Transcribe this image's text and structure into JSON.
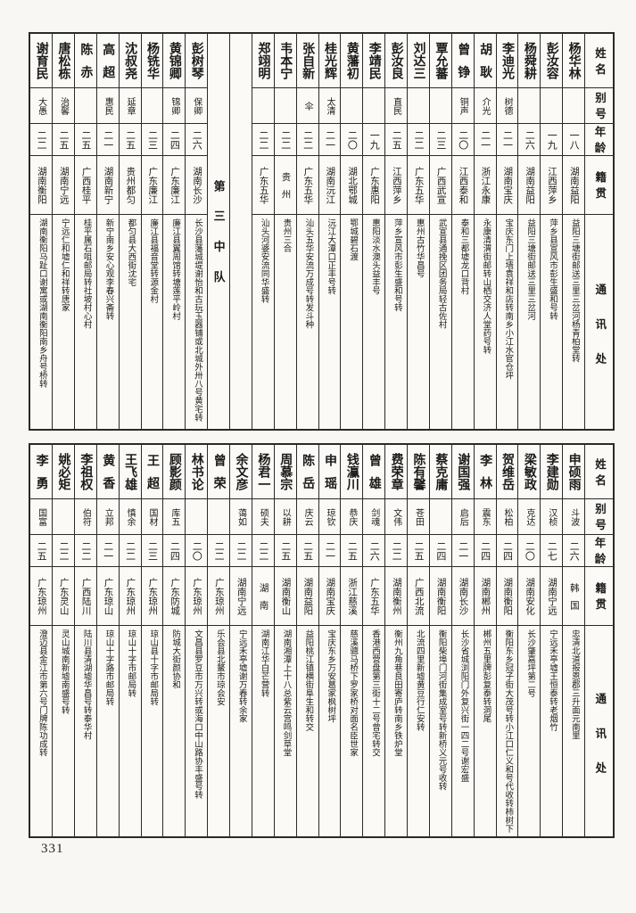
{
  "page_number": "331",
  "table_headers": {
    "name": "姓名",
    "alias": "别号",
    "age": "年龄",
    "native": "籍贯",
    "address": "通讯处"
  },
  "tables": [
    {
      "columns": [
        {
          "name": "杨华林",
          "alias": "",
          "age": "一八",
          "native": "湖南益阳",
          "address": "益阳三塘街邮送三里三岔河杨青柏堂转"
        },
        {
          "name": "彭汝容",
          "alias": "",
          "age": "一九",
          "native": "江西萍乡",
          "address": "萍乡县宣风市彭生盛和号转"
        },
        {
          "name": "杨舜耕",
          "alias": "",
          "age": "二六",
          "native": "湖南益阳",
          "address": "益阳三塘街邮送三里三岔河"
        },
        {
          "name": "李迪光",
          "alias": "树德",
          "age": "二一",
          "native": "湖南宝庆",
          "address": "宝庆东门上墙袁祥和店转南乡小江水官仓坪"
        },
        {
          "name": "胡耿",
          "alias": "介光",
          "age": "二一",
          "native": "浙江永康",
          "address": "永康清渭街邮转山栖交济人堂药号转"
        },
        {
          "name": "曾铮",
          "alias": "铜声",
          "age": "二〇",
          "native": "江西泰和",
          "address": "泰和三都墟龙口背村"
        },
        {
          "name": "覃允蕃",
          "alias": "",
          "age": "二三",
          "native": "广西武宣",
          "address": "武宣县通挽区团务局轻古佐村"
        },
        {
          "name": "刘达三",
          "alias": "",
          "age": "二二",
          "native": "广东五华",
          "address": "惠州古竹华昌号"
        },
        {
          "name": "彭汝良",
          "alias": "直民",
          "age": "二五",
          "native": "江西萍乡",
          "address": "萍乡宣风市彭生盛和号转"
        },
        {
          "name": "李靖民",
          "alias": "",
          "age": "一九",
          "native": "广东惠阳",
          "address": "惠阳淡水澳头益丰号"
        },
        {
          "name": "黄藩初",
          "alias": "",
          "age": "二〇",
          "native": "湖北鄂城",
          "address": "鄂城碧石渡"
        },
        {
          "name": "桂光辉",
          "alias": "太清",
          "age": "二一",
          "native": "湖南沅江",
          "address": "沅江大潭口正丰号转"
        },
        {
          "name": "张自新",
          "alias": "伞",
          "age": "二二",
          "native": "广东五华",
          "address": "汕头五华安流万成号转发斗种"
        },
        {
          "name": "韦本宁",
          "alias": "",
          "age": "二二",
          "native": "贵州",
          "address": "贵州三合"
        },
        {
          "name": "郑翊明",
          "alias": "",
          "age": "二二",
          "native": "广东五华",
          "address": "汕头河婆安流同华盛转"
        },
        {
          "spacer": true
        },
        {
          "divider": "第三中队"
        },
        {
          "name": "彭树琴",
          "alias": "保卿",
          "age": "二六",
          "native": "湖南长沙",
          "address": "长沙县藩城堤谢怡和古玩玉器铺或北城外卅八号黄宅转"
        },
        {
          "name": "黄锦卿",
          "alias": "锦卿",
          "age": "二四",
          "native": "广东廉江",
          "address": "廉江县翼周馆转塘莲平岭村"
        },
        {
          "name": "杨铣华",
          "alias": "",
          "age": "二三",
          "native": "广东廉江",
          "address": "廉江县福音堂转源金村"
        },
        {
          "name": "沈叔尧",
          "alias": "延章",
          "age": "二五",
          "native": "贵州都匀",
          "address": "都匀县大西街沈宅"
        },
        {
          "name": "高超",
          "alias": "惠民",
          "age": "二一",
          "native": "湖南新宁",
          "address": "新宁南乡安心观李春兴斋转"
        },
        {
          "name": "陈赤",
          "alias": "",
          "age": "二五",
          "native": "广西桂平",
          "address": "桂平属石咀邮局转社坡村心村"
        },
        {
          "name": "唐松栋",
          "alias": "治馨",
          "age": "二五",
          "native": "湖南宁远",
          "address": "宁远仁和墟仁和祥转唐家"
        },
        {
          "name": "谢育民",
          "alias": "大愚",
          "age": "二二",
          "native": "湖南衡阳",
          "address": "湖南衡阳马趾口谢寓或湖南衡阳南乡舟号桥转"
        }
      ]
    },
    {
      "columns": [
        {
          "name": "申硕雨",
          "alias": "斗波",
          "age": "二六",
          "native": "韩国",
          "address": "忠清北道报恩郡三升面元南里"
        },
        {
          "name": "李建勋",
          "alias": "汉桢",
          "age": "二七",
          "native": "湖南宁远",
          "address": "宁远禾亭墟王恒泰转老烟竹"
        },
        {
          "name": "梁敏政",
          "alias": "克达",
          "age": "二〇",
          "native": "湖南安化",
          "address": "长沙肇嘉坪第二号"
        },
        {
          "name": "贺维岳",
          "alias": "松柏",
          "age": "二四",
          "native": "湖南衡阳",
          "address": "衡阳东乡冠子街大茂号转小江口仁义和号代收转柿树下"
        },
        {
          "name": "李林",
          "alias": "震东",
          "age": "二四",
          "native": "湖南郴州",
          "address": "郴州五里牌彭复泰转洞尾"
        },
        {
          "name": "谢国强",
          "alias": "启后",
          "age": "二一",
          "native": "湖南长沙",
          "address": "长沙省城浏阳门外复兴街一四二号谢宏盛"
        },
        {
          "name": "蔡克庸",
          "alias": "",
          "age": "二四",
          "native": "湖南衡阳",
          "address": "衡阳柴埠门河街集成室号转新桥义元号收转"
        },
        {
          "name": "陈有馨",
          "alias": "苍田",
          "age": "二五",
          "native": "广西北流",
          "address": "北流四里新墟黄豆行仁安转"
        },
        {
          "name": "费荣章",
          "alias": "文伟",
          "age": "二二",
          "native": "湖南衡州",
          "address": "衡州九角巷良田寄庐转南乡铁炉堂"
        },
        {
          "name": "曾雄",
          "alias": "剑魂",
          "age": "二六",
          "native": "广东五华",
          "address": "香港西营盘第三街十二号曾宅转交"
        },
        {
          "name": "钱灜川",
          "alias": "恭庆",
          "age": "二五",
          "native": "浙江慈溪",
          "address": "慈溪骢马桥下罗家桥对面名臣世家"
        },
        {
          "name": "申瑶",
          "alias": "琼钦",
          "age": "二一",
          "native": "湖南宝庆",
          "address": "宝庆东乡万安葛家枫树坪"
        },
        {
          "name": "陈岳",
          "alias": "庆云",
          "age": "二五",
          "native": "湖南益阳",
          "address": "益阳桃江镇横街阜生和转交"
        },
        {
          "name": "周慕宗",
          "alias": "以耕",
          "age": "二五",
          "native": "湖南衡山",
          "address": "湖南湘潭上十八总紫云宫鸣剑草堂"
        },
        {
          "name": "杨君一",
          "alias": "硕夫",
          "age": "二二",
          "native": "湖南",
          "address": "湖南江华白芒营转"
        },
        {
          "name": "余文彦",
          "alias": "蔼如",
          "age": "二二",
          "native": "湖南宁远",
          "address": "宁远禾亭墟谢万春转余家"
        },
        {
          "name": "曾荣",
          "alias": "",
          "age": "二二",
          "native": "广东琼州",
          "address": "乐会县北鳌市琼会安"
        },
        {
          "name": "林书论",
          "alias": "",
          "age": "二〇",
          "native": "广东琼州",
          "address": "文昌县罗豆市万兴转或海口中山路协丰盛号转"
        },
        {
          "name": "顾影颜",
          "alias": "库五",
          "age": "二四",
          "native": "广东防城",
          "address": "防城大街颜协和"
        },
        {
          "name": "王超",
          "alias": "国材",
          "age": "二三",
          "native": "广东琼州",
          "address": "琼山县十字市邮局转"
        },
        {
          "name": "王飞雄",
          "alias": "慎余",
          "age": "二二",
          "native": "广东琼州",
          "address": "琼山十字市邮局转"
        },
        {
          "name": "黄香",
          "alias": "立邦",
          "age": "二一",
          "native": "广东琼山",
          "address": "琼山十字路市邮局转"
        },
        {
          "name": "李祖权",
          "alias": "伯符",
          "age": "二二",
          "native": "广西陆川",
          "address": "陆川县清湖墟华昌号转泰华村"
        },
        {
          "name": "姚必矩",
          "alias": "",
          "age": "二二",
          "native": "广东灵山",
          "address": "灵山城南新墟南盛号转"
        },
        {
          "name": "李勇",
          "alias": "国富",
          "age": "二五",
          "native": "广东琼州",
          "address": "澄迈县金江市第六号门牌陈功成转"
        }
      ]
    }
  ]
}
